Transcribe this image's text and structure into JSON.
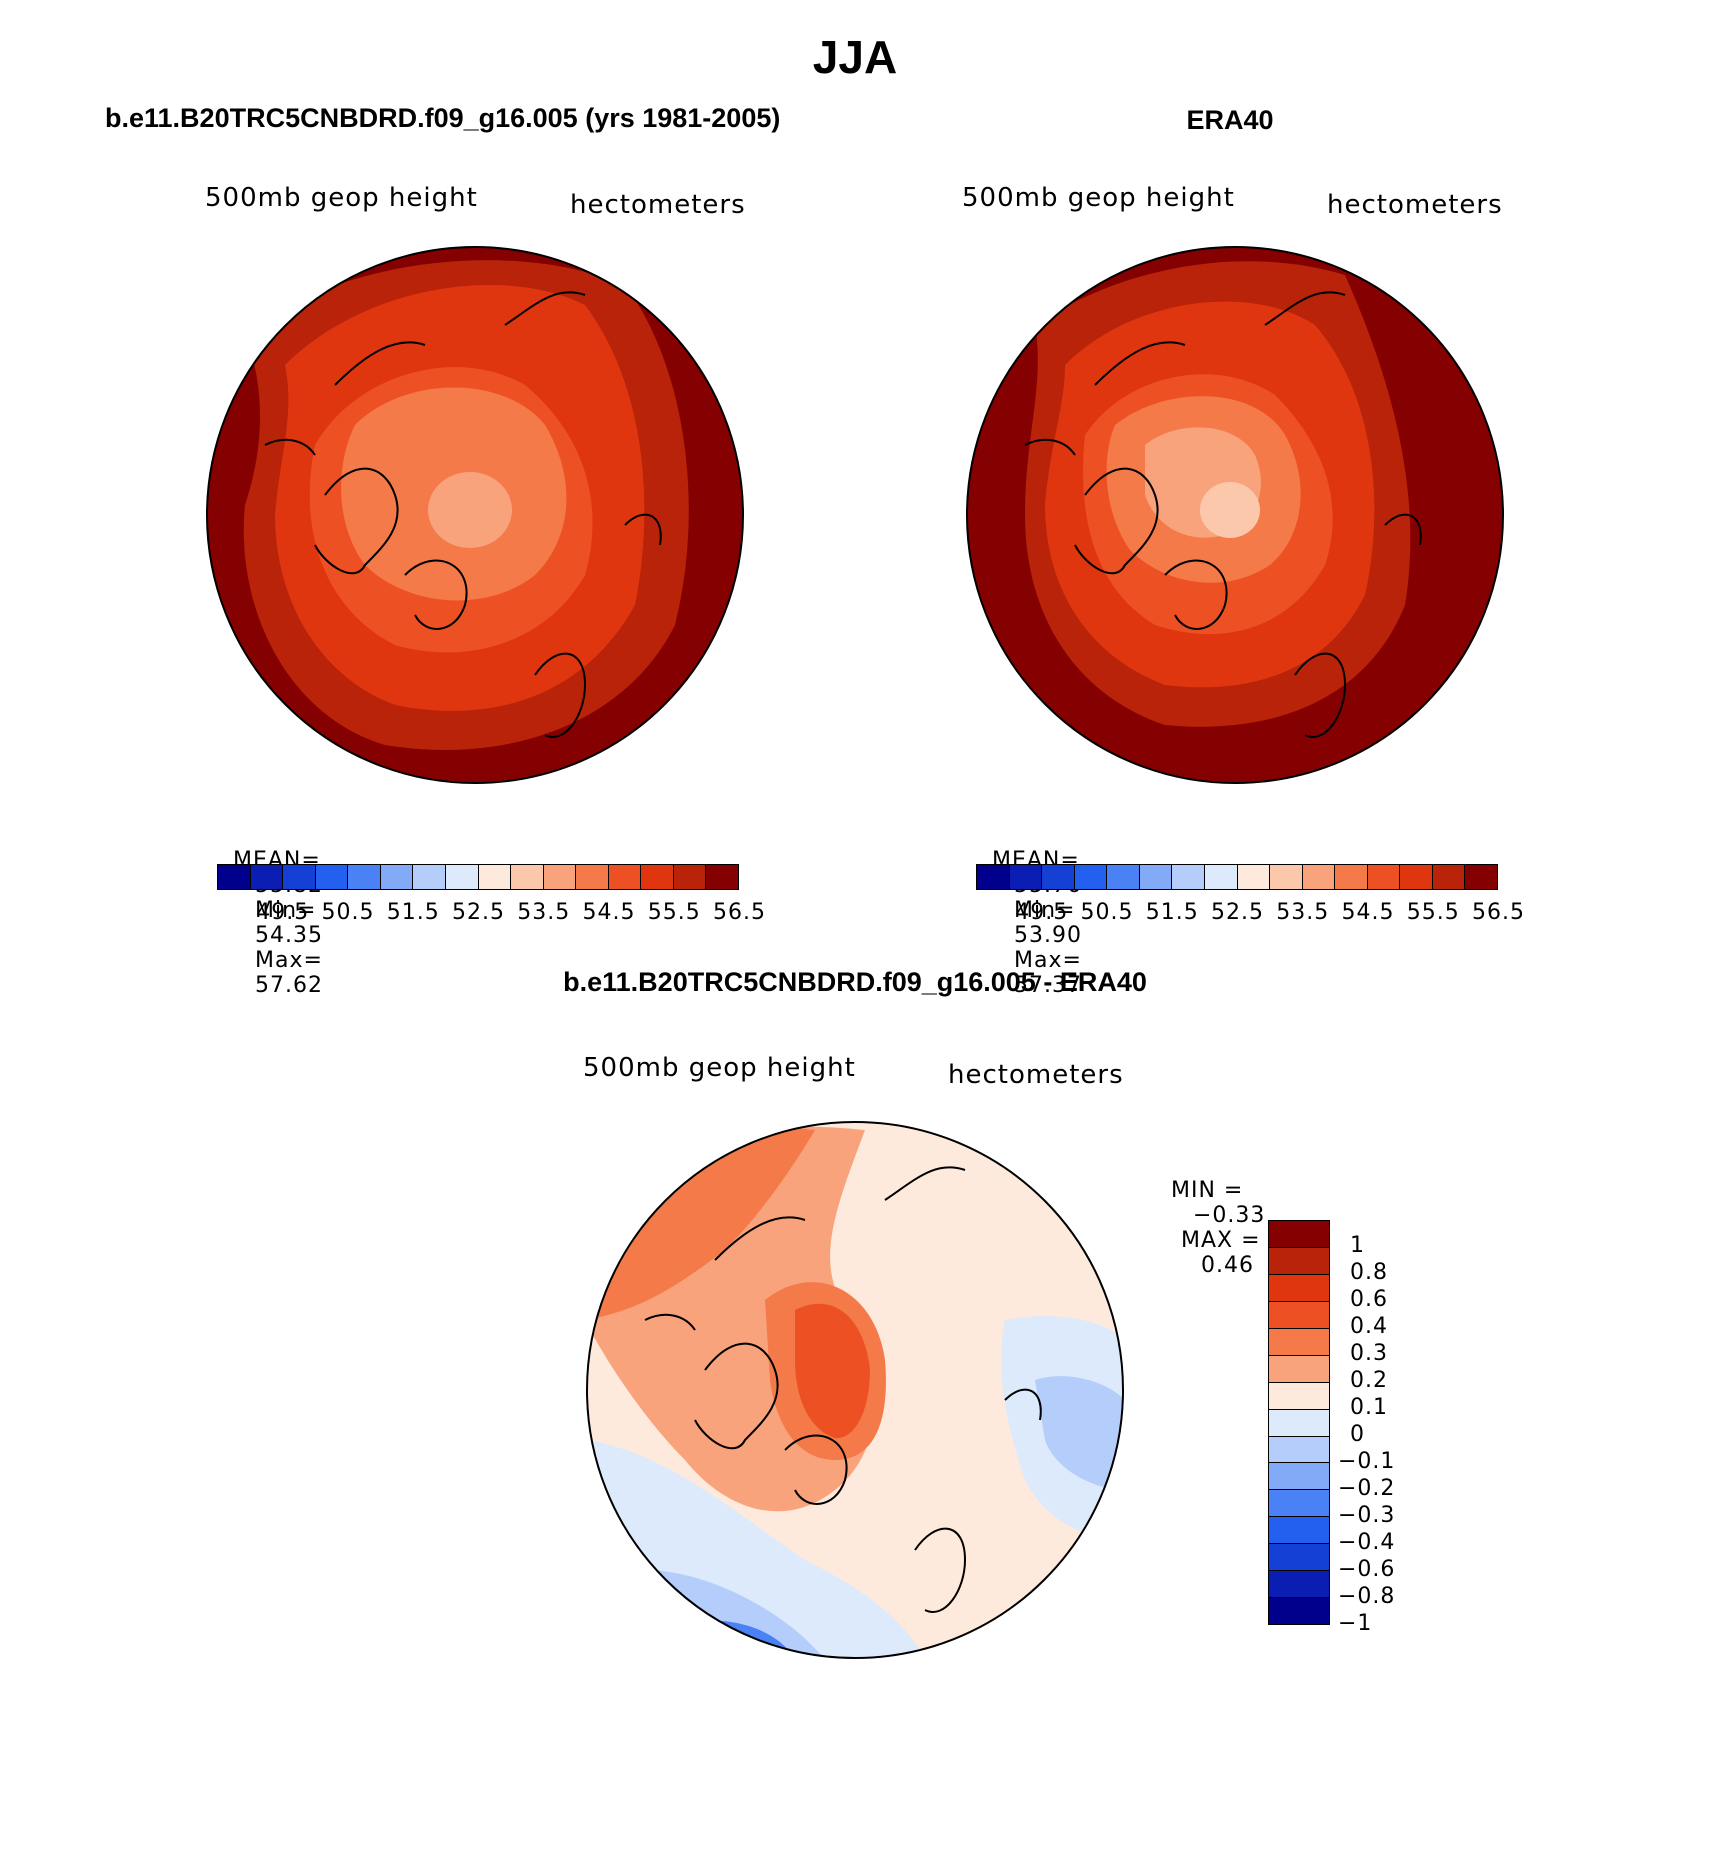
{
  "header": {
    "title": "JJA"
  },
  "panels": {
    "model": {
      "title": "b.e11.B20TRC5CNBDRD.f09_g16.005 (yrs 1981-2005)",
      "variable": "500mb geop height",
      "units": "hectometers",
      "stats": {
        "mean_label": "MEAN=",
        "mean": "55.82",
        "min_label": "Min=",
        "min": "54.35",
        "max_label": "Max=",
        "max": "57.62"
      }
    },
    "obs": {
      "title": "ERA40",
      "variable": "500mb geop height",
      "units": "hectometers",
      "stats": {
        "mean_label": "MEAN=",
        "mean": "55.76",
        "min_label": "Min=",
        "min": "53.90",
        "max_label": "Max=",
        "max": "57.37"
      }
    },
    "diff": {
      "title": "b.e11.B20TRC5CNBDRD.f09_g16.005 - ERA40",
      "variable": "500mb geop height",
      "units": "hectometers",
      "stats": {
        "min_label": "MIN =",
        "min": "−0.33",
        "max_label": "MAX =",
        "max": "0.46"
      }
    }
  },
  "colorbars": {
    "abs": {
      "colors": [
        "#00008c",
        "#0a1eb4",
        "#1440d6",
        "#2460f0",
        "#4a82f5",
        "#82aaf7",
        "#b4cdfa",
        "#dceafc",
        "#fdeadc",
        "#fbc8ab",
        "#f8a37c",
        "#f47a4a",
        "#ed5123",
        "#e03610",
        "#b8230a",
        "#850000"
      ],
      "ticks": [
        "49.5",
        "50.5",
        "51.5",
        "52.5",
        "53.5",
        "54.5",
        "55.5",
        "56.5"
      ]
    },
    "diff": {
      "colors": [
        "#850000",
        "#b8230a",
        "#e03610",
        "#ed5123",
        "#f47a4a",
        "#f8a37c",
        "#fdeadc",
        "#dceafc",
        "#b4cdfa",
        "#82aaf7",
        "#4a82f5",
        "#2460f0",
        "#1440d6",
        "#0a1eb4",
        "#00008c"
      ],
      "ticks": [
        "1",
        "0.8",
        "0.6",
        "0.4",
        "0.3",
        "0.2",
        "0.1",
        "0",
        "−0.1",
        "−0.2",
        "−0.3",
        "−0.4",
        "−0.6",
        "−0.8",
        "−1"
      ]
    }
  }
}
